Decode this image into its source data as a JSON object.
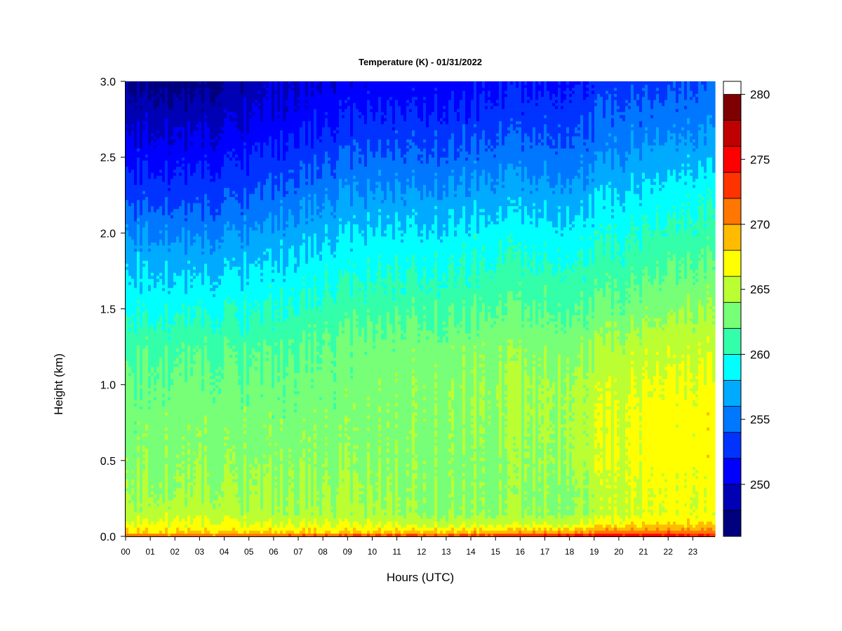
{
  "chart_data": {
    "type": "heatmap",
    "title": "Temperature (K) - 01/31/2022",
    "xlabel": "Hours (UTC)",
    "ylabel": "Height (km)",
    "x_ticks": [
      "00",
      "01",
      "02",
      "03",
      "04",
      "05",
      "06",
      "07",
      "08",
      "09",
      "10",
      "11",
      "12",
      "13",
      "14",
      "15",
      "16",
      "17",
      "18",
      "19",
      "20",
      "21",
      "22",
      "23"
    ],
    "y_ticks": [
      "0.0",
      "0.5",
      "1.0",
      "1.5",
      "2.0",
      "2.5",
      "3.0"
    ],
    "xlim": [
      0,
      23.9
    ],
    "ylim": [
      0,
      3.0
    ],
    "colorbar": {
      "ticks": [
        "250",
        "255",
        "260",
        "265",
        "270",
        "275",
        "280"
      ],
      "tick_values": [
        250,
        255,
        260,
        265,
        270,
        275,
        280
      ],
      "min": 246,
      "max": 281,
      "levels": [
        246,
        248,
        250,
        252,
        254,
        256,
        258,
        260,
        262,
        264,
        266,
        268,
        270,
        272,
        274,
        276,
        278,
        280
      ],
      "colors": [
        "#00007F",
        "#0000B4",
        "#0000FF",
        "#0033FF",
        "#0077FF",
        "#00AAFF",
        "#00FFFF",
        "#33FFAA",
        "#77FF77",
        "#BBFF33",
        "#FFFF00",
        "#FFBB00",
        "#FF7700",
        "#FF3300",
        "#FF0000",
        "#C00000",
        "#7F0000"
      ]
    },
    "profile_heights_km": [
      0.0,
      0.03,
      0.08,
      0.15,
      0.3,
      0.5,
      0.8,
      1.0,
      1.25,
      1.5,
      1.75,
      2.0,
      2.25,
      2.5,
      2.75,
      3.0
    ],
    "profile_hours": [
      0,
      3,
      6,
      9,
      12,
      15,
      18,
      20,
      21.5,
      23.9
    ],
    "temperature_k": [
      [
        272.5,
        268.0,
        266.5,
        265.0,
        264.0,
        263.5,
        263.0,
        262.5,
        261.5,
        259.5,
        258.0,
        256.0,
        253.5,
        251.5,
        249.5,
        247.5
      ],
      [
        272.0,
        268.0,
        266.5,
        265.0,
        264.0,
        263.5,
        263.0,
        262.5,
        261.5,
        259.5,
        257.5,
        255.5,
        253.0,
        251.0,
        249.0,
        247.0
      ],
      [
        273.0,
        268.0,
        266.0,
        264.5,
        264.0,
        263.5,
        263.0,
        262.5,
        261.5,
        260.0,
        258.5,
        256.5,
        254.5,
        252.5,
        250.5,
        249.5
      ],
      [
        273.5,
        268.0,
        266.0,
        264.5,
        264.0,
        263.5,
        263.0,
        263.0,
        262.5,
        261.0,
        259.5,
        258.0,
        256.0,
        254.0,
        252.0,
        250.5
      ],
      [
        274.0,
        268.5,
        265.5,
        264.0,
        263.8,
        263.5,
        263.5,
        263.5,
        263.0,
        261.5,
        260.0,
        258.5,
        256.5,
        254.5,
        252.5,
        251.0
      ],
      [
        274.5,
        269.0,
        265.5,
        264.0,
        263.5,
        263.5,
        264.0,
        264.0,
        263.5,
        262.0,
        260.5,
        259.0,
        257.0,
        255.0,
        253.0,
        251.5
      ],
      [
        276.5,
        270.0,
        266.0,
        264.0,
        264.0,
        264.5,
        264.5,
        264.5,
        263.5,
        262.0,
        260.5,
        259.0,
        257.0,
        255.0,
        253.5,
        252.0
      ],
      [
        277.0,
        271.0,
        267.0,
        265.5,
        265.5,
        266.0,
        266.0,
        265.5,
        264.5,
        262.5,
        261.0,
        259.5,
        258.0,
        256.0,
        254.5,
        253.0
      ],
      [
        276.5,
        271.5,
        268.0,
        266.5,
        266.5,
        267.0,
        267.0,
        266.5,
        265.5,
        263.5,
        262.0,
        260.5,
        259.0,
        257.0,
        255.0,
        253.5
      ],
      [
        275.0,
        271.0,
        268.0,
        266.5,
        266.5,
        267.0,
        267.0,
        266.5,
        265.5,
        264.0,
        262.5,
        261.0,
        259.5,
        257.5,
        255.5,
        254.0
      ]
    ]
  }
}
